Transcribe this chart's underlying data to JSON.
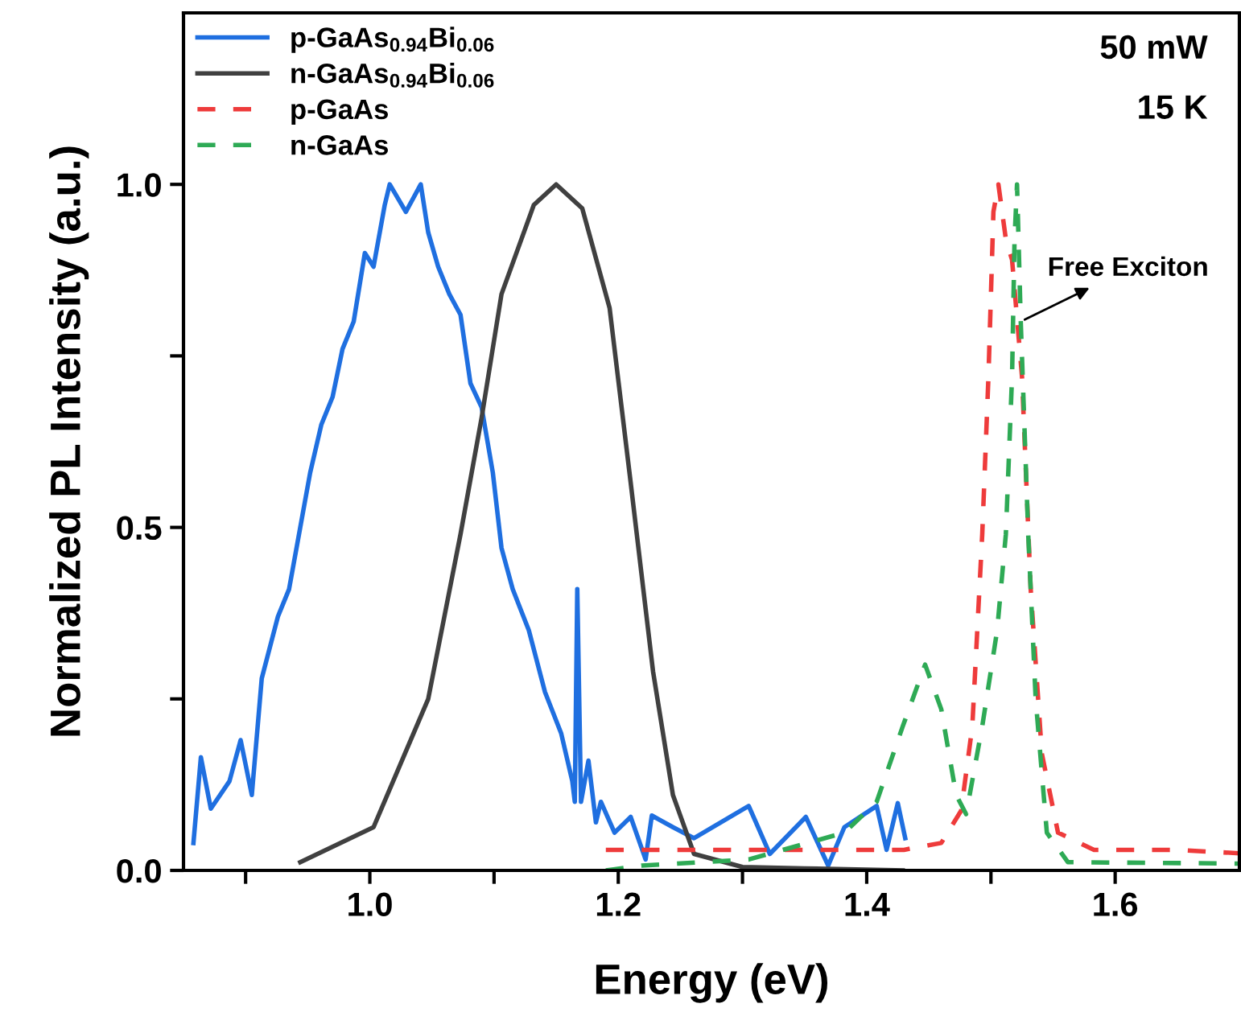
{
  "chart_data": {
    "type": "line",
    "xlabel": "Energy (eV)",
    "ylabel": "Normalized PL Intensity (a.u.)",
    "xlim": [
      0.85,
      1.7
    ],
    "ylim": [
      0,
      1.25
    ],
    "xticks": [
      {
        "value": 0.9,
        "label": null
      },
      {
        "value": 1.0,
        "label": "1.0"
      },
      {
        "value": 1.1,
        "label": null
      },
      1.2,
      {
        "value": 1.3,
        "label": null
      },
      1.4,
      {
        "value": 1.5,
        "label": null
      },
      1.6
    ],
    "yticks": [
      {
        "value": 0.0,
        "label": "0.0"
      },
      {
        "value": 0.25,
        "label": null
      },
      0.5,
      {
        "value": 0.75,
        "label": null
      },
      {
        "value": 1.0,
        "label": "1.0"
      }
    ],
    "grid": false,
    "legend": "top left",
    "marker": "none",
    "annotations": [
      "50 mW",
      "15 K",
      {
        "text": "Free Exciton",
        "x": 1.524,
        "y": 0.8
      }
    ],
    "series": [
      {
        "name": "p-GaAs$_{0.94}$Bi$_{0.06}$",
        "color": "#1f6fe0",
        "line_style": "solid",
        "x": [
          0.858,
          0.864,
          0.872,
          0.887,
          0.896,
          0.905,
          0.913,
          0.926,
          0.935,
          0.944,
          0.952,
          0.961,
          0.97,
          0.978,
          0.987,
          0.996,
          1.003,
          1.012,
          1.016,
          1.029,
          1.041,
          1.047,
          1.055,
          1.064,
          1.073,
          1.081,
          1.09,
          1.099,
          1.106,
          1.115,
          1.128,
          1.141,
          1.154,
          1.163,
          1.165,
          1.167,
          1.17,
          1.176,
          1.182,
          1.186,
          1.197,
          1.21,
          1.222,
          1.227,
          1.244,
          1.261,
          1.305,
          1.322,
          1.351,
          1.369,
          1.382,
          1.408,
          1.416,
          1.425,
          1.431
        ],
        "values": [
          0.04,
          0.165,
          0.09,
          0.13,
          0.19,
          0.11,
          0.28,
          0.37,
          0.41,
          0.5,
          0.58,
          0.65,
          0.69,
          0.76,
          0.8,
          0.9,
          0.88,
          0.97,
          1.0,
          0.96,
          1.0,
          0.93,
          0.88,
          0.84,
          0.81,
          0.71,
          0.675,
          0.58,
          0.47,
          0.41,
          0.35,
          0.26,
          0.2,
          0.13,
          0.1,
          0.41,
          0.1,
          0.16,
          0.07,
          0.1,
          0.055,
          0.078,
          0.016,
          0.08,
          0.063,
          0.047,
          0.094,
          0.024,
          0.078,
          0.007,
          0.063,
          0.094,
          0.03,
          0.098,
          0.047
        ]
      },
      {
        "name": "n-GaAs$_{0.94}$Bi$_{0.06}$",
        "color": "#404040",
        "line_style": "solid",
        "x": [
          0.944,
          1.003,
          1.047,
          1.073,
          1.09,
          1.106,
          1.132,
          1.15,
          1.171,
          1.193,
          1.21,
          1.228,
          1.244,
          1.261,
          1.3,
          1.35,
          1.429
        ],
        "values": [
          0.012,
          0.063,
          0.25,
          0.49,
          0.66,
          0.84,
          0.97,
          1.0,
          0.965,
          0.82,
          0.565,
          0.29,
          0.11,
          0.024,
          0.005,
          0.003,
          0.0
        ]
      },
      {
        "name": "p-GaAs",
        "color": "#ee3b3b",
        "line_style": "dashed",
        "x": [
          1.19,
          1.3,
          1.43,
          1.46,
          1.476,
          1.485,
          1.493,
          1.498,
          1.502,
          1.506,
          1.512,
          1.517,
          1.525,
          1.532,
          1.541,
          1.554,
          1.583,
          1.648,
          1.7
        ],
        "values": [
          0.03,
          0.03,
          0.03,
          0.04,
          0.087,
          0.21,
          0.49,
          0.72,
          0.96,
          1.0,
          0.92,
          0.89,
          0.72,
          0.41,
          0.17,
          0.055,
          0.03,
          0.03,
          0.025
        ]
      },
      {
        "name": "n-GaAs",
        "color": "#2eaa55",
        "line_style": "dashed",
        "x": [
          1.19,
          1.219,
          1.305,
          1.382,
          1.408,
          1.429,
          1.447,
          1.46,
          1.472,
          1.48,
          1.493,
          1.505,
          1.512,
          1.517,
          1.519,
          1.521,
          1.524,
          1.53,
          1.536,
          1.545,
          1.562,
          1.7
        ],
        "values": [
          0.0,
          0.007,
          0.016,
          0.055,
          0.1,
          0.21,
          0.3,
          0.235,
          0.11,
          0.082,
          0.21,
          0.35,
          0.49,
          0.72,
          0.92,
          1.0,
          0.8,
          0.49,
          0.25,
          0.055,
          0.012,
          0.01
        ]
      }
    ]
  }
}
